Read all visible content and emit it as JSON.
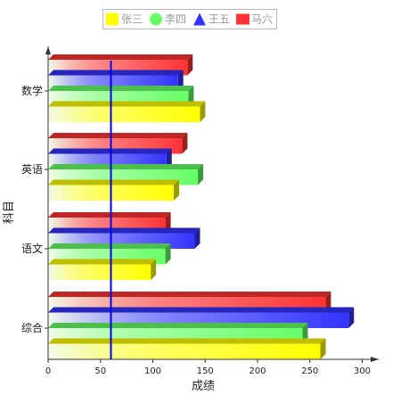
{
  "chart_data": {
    "type": "bar",
    "orientation": "horizontal",
    "style": "3d-gradient",
    "categories": [
      "综合",
      "语文",
      "英语",
      "数学"
    ],
    "series": [
      {
        "name": "张三",
        "color": "#ffff00",
        "values": [
          260,
          98,
          120,
          145
        ]
      },
      {
        "name": "李四",
        "color": "#66ff66",
        "values": [
          243,
          112,
          143,
          134
        ]
      },
      {
        "name": "王五",
        "color": "#3333ff",
        "values": [
          287,
          140,
          113,
          124
        ]
      },
      {
        "name": "马六",
        "color": "#ff3333",
        "values": [
          265,
          112,
          128,
          133
        ]
      }
    ],
    "reference_line": {
      "value": 60,
      "color": "#0000ee"
    },
    "xlabel": "成绩",
    "ylabel": "科目",
    "xlim": [
      0,
      320
    ],
    "xticks": [
      0,
      50,
      100,
      150,
      200,
      250,
      300
    ],
    "grid": false,
    "legend_position": "top"
  }
}
